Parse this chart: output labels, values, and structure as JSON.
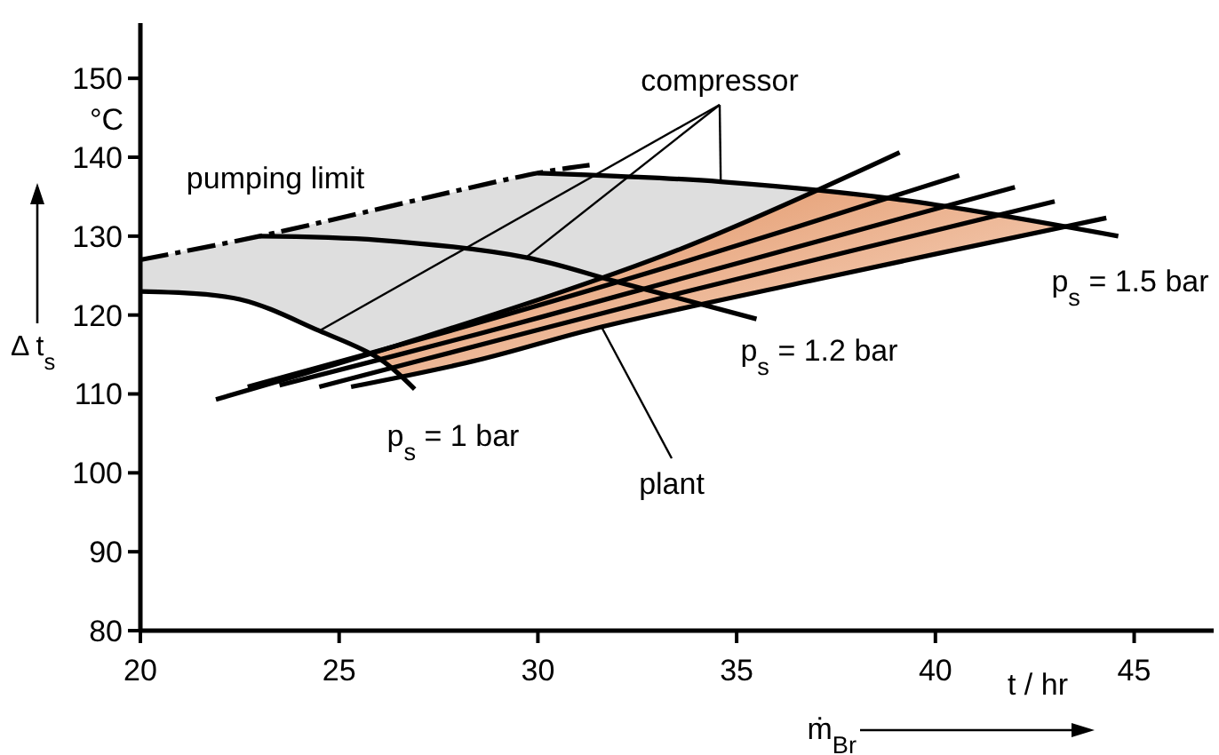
{
  "chart_data": {
    "type": "line",
    "xlabel": "ṁ$_{Br}$",
    "ylabel": "Δ t$_{s}$",
    "xlim": [
      20,
      47
    ],
    "ylim": [
      80,
      157
    ],
    "xticks": [
      20,
      25,
      30,
      35,
      40,
      45
    ],
    "yticks": [
      80,
      90,
      100,
      110,
      120,
      130,
      140,
      150
    ],
    "grid": false,
    "series": [
      {
        "color": "#000000",
        "line_style": "dashed",
        "x": [
          20,
          23,
          30,
          31.3
        ],
        "values": [
          127,
          130,
          138,
          139
        ]
      },
      {
        "color": "#000000",
        "x": [
          20,
          22.5,
          24.5,
          26,
          26.9
        ],
        "values": [
          123,
          122,
          118,
          114.5,
          110.6
        ]
      },
      {
        "color": "#000000",
        "x": [
          23,
          26,
          29.7,
          32,
          35.5
        ],
        "values": [
          130,
          129.5,
          127.3,
          124.2,
          119.5
        ]
      },
      {
        "color": "#000000",
        "x": [
          30,
          32,
          34.6,
          39,
          44.6
        ],
        "values": [
          138,
          137.6,
          136.9,
          134.7,
          130
        ]
      },
      {
        "color": "#000000",
        "x": [
          21.9,
          27,
          33.6,
          39.1
        ],
        "values": [
          109.3,
          117,
          128.4,
          140.6
        ]
      },
      {
        "color": "#000000",
        "x": [
          22.7,
          28,
          33.6,
          40.6
        ],
        "values": [
          110.9,
          118.3,
          126.6,
          137.7
        ]
      },
      {
        "color": "#000000",
        "x": [
          23.5,
          28.5,
          33.6,
          42
        ],
        "values": [
          111.1,
          117.6,
          124.6,
          136.2
        ]
      },
      {
        "color": "#000000",
        "x": [
          24.5,
          29,
          33.6,
          43
        ],
        "values": [
          110.9,
          116.8,
          122.8,
          134.4
        ]
      },
      {
        "color": "#000000",
        "x": [
          25.3,
          28.5,
          31.6,
          37,
          44.3
        ],
        "values": [
          110.9,
          114.3,
          118.5,
          124.5,
          132.3
        ]
      }
    ],
    "annotations": [
      "°C",
      "t / hr",
      {
        "text": "compressor",
        "x": 34.6,
        "y": 136.9
      },
      {
        "text": "plant",
        "x": 31.6,
        "y": 118.5
      },
      "pumping limit",
      "p$_{s}$ = 1 bar",
      "p$_{s}$ = 1.2 bar",
      "p$_{s}$ = 1.5 bar"
    ]
  }
}
